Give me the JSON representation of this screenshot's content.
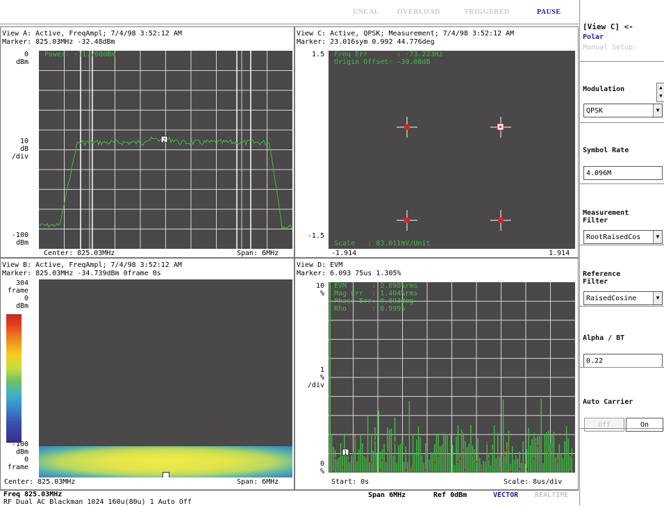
{
  "status_bar": {
    "uncal": "UNCAL",
    "overload": "OVERLOAD",
    "triggered": "TRIGGERED",
    "pause": "PAUSE"
  },
  "view_a": {
    "header": "View A: Active, FreqAmpl; 7/4/98 3:52:12 AM",
    "marker": "Marker: 825.03MHz  -32.48dBm",
    "readout": "Power: -11.768dBm",
    "y_top": [
      "0",
      "dBm"
    ],
    "y_mid": [
      "10",
      "dB",
      "/div"
    ],
    "y_bot": [
      "-100",
      "dBm"
    ],
    "center": "Center: 825.03MHz",
    "span": "Span: 6MHz",
    "marker_tag": "2"
  },
  "view_c": {
    "header": "View C: Active, QPSK; Measurement; 7/4/98 3:52:12 AM",
    "marker": "Marker: 23.016sym  0.992  44.776deg",
    "readout": [
      "Freq Err       : -73.223Hz",
      "Origin Offset: -39.08dB"
    ],
    "scale": "Scale   : 83.011mV/Unit",
    "y_top": "1.5",
    "y_bot": "-1.5",
    "x_left": "-1.914",
    "x_right": "1.914"
  },
  "view_b": {
    "header": "View B: Active, FreqAmpl; 7/4/98 3:52:12 AM",
    "marker": "Marker: 825.03MHz  -34.739dBm  0frame  0s",
    "y_top": [
      "304",
      "frame",
      "0",
      "dBm"
    ],
    "y_bot": [
      "-100",
      "dBm",
      "0",
      "frame"
    ],
    "center": "Center: 825.03MHz",
    "span": "Span: 6MHz"
  },
  "view_d": {
    "header": "View D: EVM",
    "marker": "Marker: 6.093 75us  1.305%",
    "readout": [
      "EVM      : 2.098%rms",
      "Mag Err  : 1.404%rms",
      "Phase Err: 0.893deg",
      "Rho      : 0.9995"
    ],
    "y_top": [
      "10",
      "%"
    ],
    "y_mid": [
      "1",
      "%",
      "/div"
    ],
    "y_bot": [
      "0",
      "%"
    ],
    "start": "Start: 0s",
    "scale": "Scale: 8us/div",
    "marker_tag": "1"
  },
  "right_panel": {
    "view_title": "[View C] <-",
    "polar": "Polar",
    "manual_setup": "Manual Setup:",
    "modulation_label": "Modulation",
    "modulation_value": "QPSK",
    "symbol_rate_label": "Symbol Rate",
    "symbol_rate_value": "4.096M",
    "meas_filter_label": [
      "Measurement",
      "Filter"
    ],
    "meas_filter_value": "RootRaisedCos",
    "ref_filter_label": [
      "Reference",
      "Filter"
    ],
    "ref_filter_value": "RaisedCosine",
    "alpha_label": "Alpha / BT",
    "alpha_value": "0.22",
    "auto_carrier_label": "Auto Carrier",
    "off": "Off",
    "on": "On"
  },
  "footer": {
    "freq": "Freq 825.03MHz",
    "info": "RF Dual AC Blackman 1024 160u(80u) 1 Auto Off",
    "span": "Span 6MHz",
    "ref": "Ref 0dBm",
    "vector": "VECTOR",
    "realtime": "REALTIME"
  },
  "colors": {
    "trace": "#3dbf43",
    "grid": "#d8d8d8",
    "bg": "#4a4848",
    "marker": "#e02020",
    "accent": "#20209a"
  }
}
